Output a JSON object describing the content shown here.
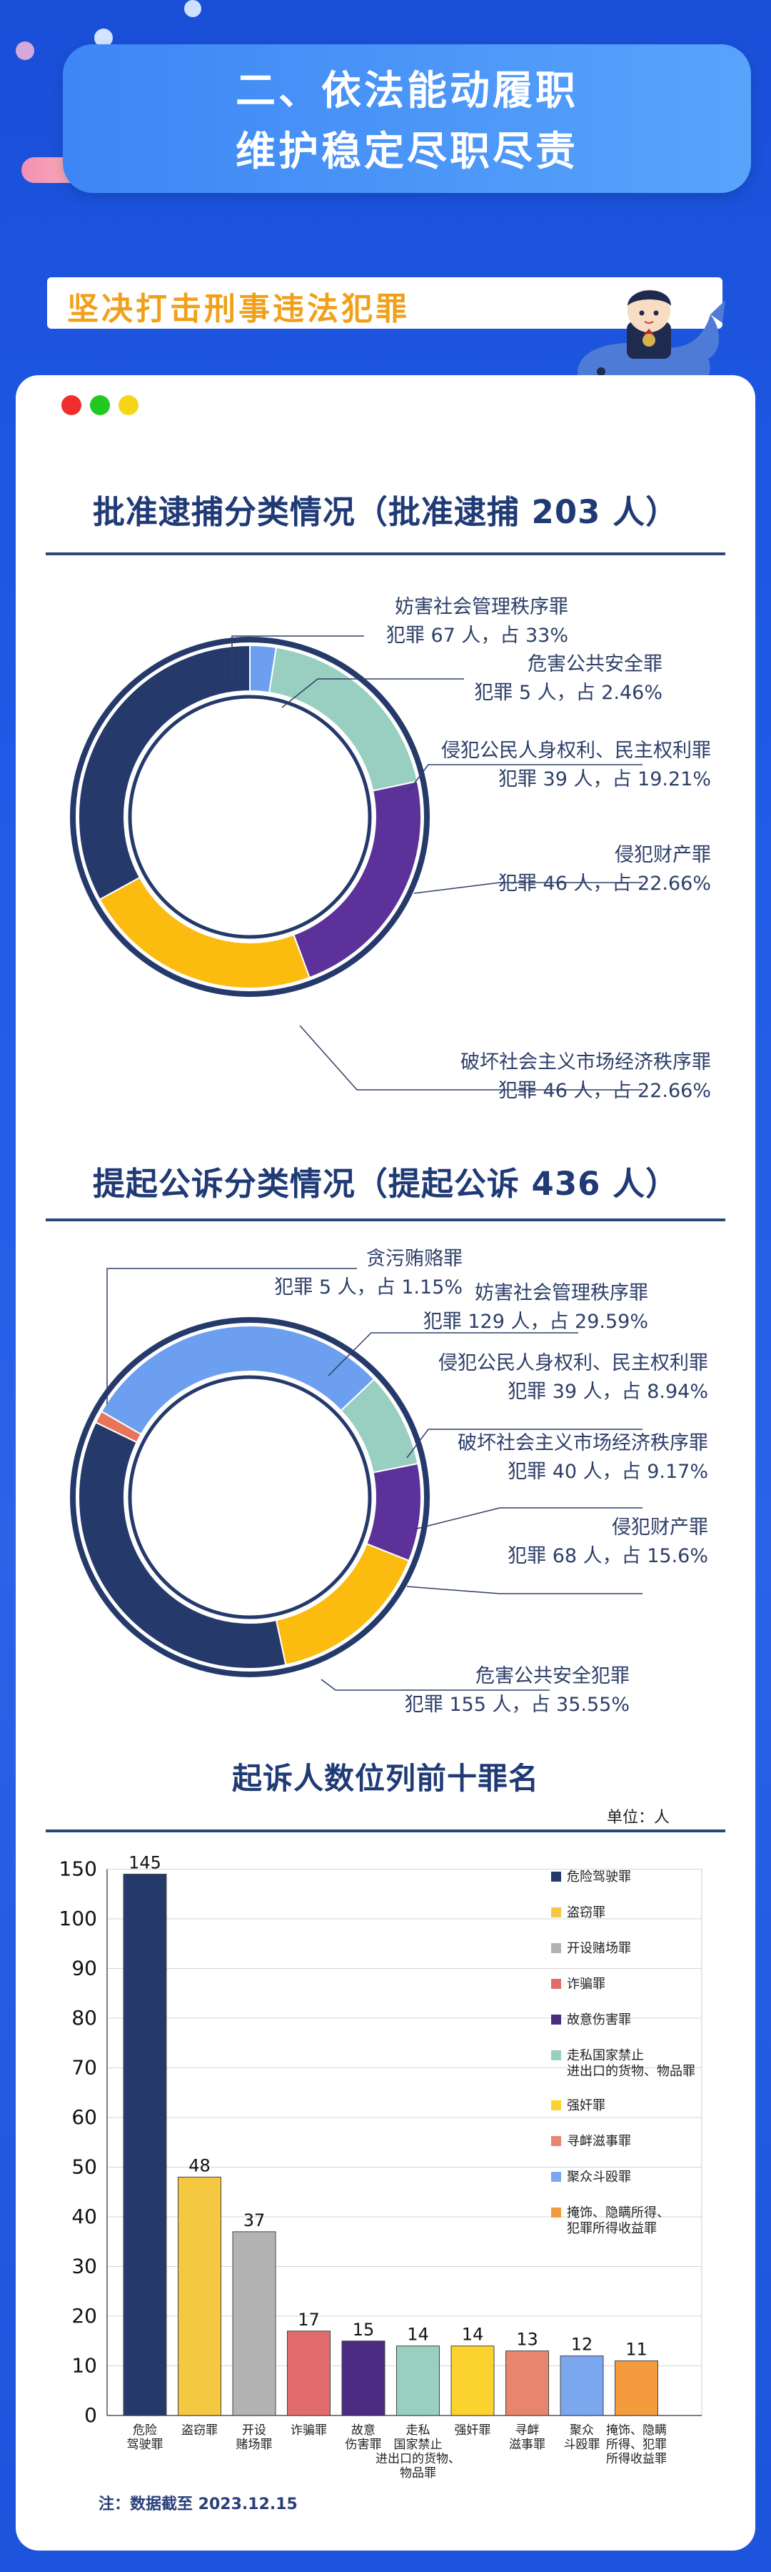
{
  "header": {
    "line1": "二、依法能动履职",
    "line2": "维护稳定尽职尽责"
  },
  "subheader": "坚决打击刑事违法犯罪",
  "colors": {
    "brand_blue": "#1f4fd8",
    "navy": "#253a6b",
    "orange": "#f1a019"
  },
  "icons": [
    "traffic-light-dots",
    "whale-mascot",
    "prosecutor-mascot"
  ],
  "chart_data": [
    {
      "type": "pie",
      "variant": "donut",
      "title": "批准逮捕分类情况（批准逮捕 203 人）",
      "slices": [
        {
          "name": "妨害社会管理秩序罪",
          "text": "犯罪 67 人，占 33%",
          "value": 67,
          "percent": 33,
          "color": "#253a6b"
        },
        {
          "name": "危害公共安全罪",
          "text": "犯罪 5 人，占 2.46%",
          "value": 5,
          "percent": 2.46,
          "color": "#6d9ff0"
        },
        {
          "name": "侵犯公民人身权利、民主权利罪",
          "text": "犯罪 39 人，占 19.21%",
          "value": 39,
          "percent": 19.21,
          "color": "#98cfc0"
        },
        {
          "name": "侵犯财产罪",
          "text": "犯罪 46 人，占 22.66%",
          "value": 46,
          "percent": 22.66,
          "color": "#5c3199"
        },
        {
          "name": "破坏社会主义市场经济秩序罪",
          "text": "犯罪 46 人，占 22.66%",
          "value": 46,
          "percent": 22.66,
          "color": "#fbbb0f"
        }
      ]
    },
    {
      "type": "pie",
      "variant": "donut",
      "title": "提起公诉分类情况（提起公诉 436 人）",
      "slices": [
        {
          "name": "贪污贿赂罪",
          "text": "犯罪 5 人，占 1.15%",
          "value": 5,
          "percent": 1.15,
          "color": "#e8745d"
        },
        {
          "name": "妨害社会管理秩序罪",
          "text": "犯罪 129 人，占 29.59%",
          "value": 129,
          "percent": 29.59,
          "color": "#6d9ff0"
        },
        {
          "name": "侵犯公民人身权利、民主权利罪",
          "text": "犯罪 39 人，占 8.94%",
          "value": 39,
          "percent": 8.94,
          "color": "#98cfc0"
        },
        {
          "name": "破坏社会主义市场经济秩序罪",
          "text": "犯罪 40 人，占 9.17%",
          "value": 40,
          "percent": 9.17,
          "color": "#5c3199"
        },
        {
          "name": "侵犯财产罪",
          "text": "犯罪 68 人，占 15.6%",
          "value": 68,
          "percent": 15.6,
          "color": "#fbbb0f"
        },
        {
          "name": "危害公共安全犯罪",
          "text": "犯罪 155 人，占 35.55%",
          "value": 155,
          "percent": 35.55,
          "color": "#253a6b"
        }
      ]
    },
    {
      "type": "bar",
      "title": "起诉人数位列前十罪名",
      "unit": "单位：人",
      "ylim": [
        0,
        150
      ],
      "yticks": [
        0,
        10,
        20,
        30,
        40,
        50,
        60,
        70,
        80,
        90,
        100,
        150
      ],
      "grid": true,
      "legend": "right",
      "bars": [
        {
          "label": "危险驾驶罪",
          "tick": [
            "危险",
            "驾驶罪"
          ],
          "value": 145,
          "color": "#253a6b"
        },
        {
          "label": "盗窃罪",
          "tick": [
            "盗窃罪"
          ],
          "value": 48,
          "color": "#f5c842"
        },
        {
          "label": "开设赌场罪",
          "tick": [
            "开设",
            "赌场罪"
          ],
          "value": 37,
          "color": "#b3b3b3"
        },
        {
          "label": "诈骗罪",
          "tick": [
            "诈骗罪"
          ],
          "value": 17,
          "color": "#e26b6b"
        },
        {
          "label": "故意伤害罪",
          "tick": [
            "故意",
            "伤害罪"
          ],
          "value": 15,
          "color": "#4a2c83"
        },
        {
          "label": "走私国家禁止进出口的货物、物品罪",
          "tick": [
            "走私",
            "国家禁止",
            "进出口的货物、",
            "物品罪"
          ],
          "legend": [
            "走私国家禁止",
            "进出口的货物、物品罪"
          ],
          "value": 14,
          "color": "#98cfc0"
        },
        {
          "label": "强奸罪",
          "tick": [
            "强奸罪"
          ],
          "value": 14,
          "color": "#fcd22e"
        },
        {
          "label": "寻衅滋事罪",
          "tick": [
            "寻衅",
            "滋事罪"
          ],
          "value": 13,
          "color": "#e8856f"
        },
        {
          "label": "聚众斗殴罪",
          "tick": [
            "聚众",
            "斗殴罪"
          ],
          "value": 12,
          "color": "#7aa7ee"
        },
        {
          "label": "掩饰、隐瞒所得、犯罪所得收益罪",
          "tick": [
            "掩饰、隐瞒",
            "所得、犯罪",
            "所得收益罪"
          ],
          "legend": [
            "掩饰、隐瞒所得、",
            "犯罪所得收益罪"
          ],
          "value": 11,
          "color": "#f39b3d"
        }
      ]
    }
  ],
  "footnote": "注：数据截至 2023.12.15"
}
